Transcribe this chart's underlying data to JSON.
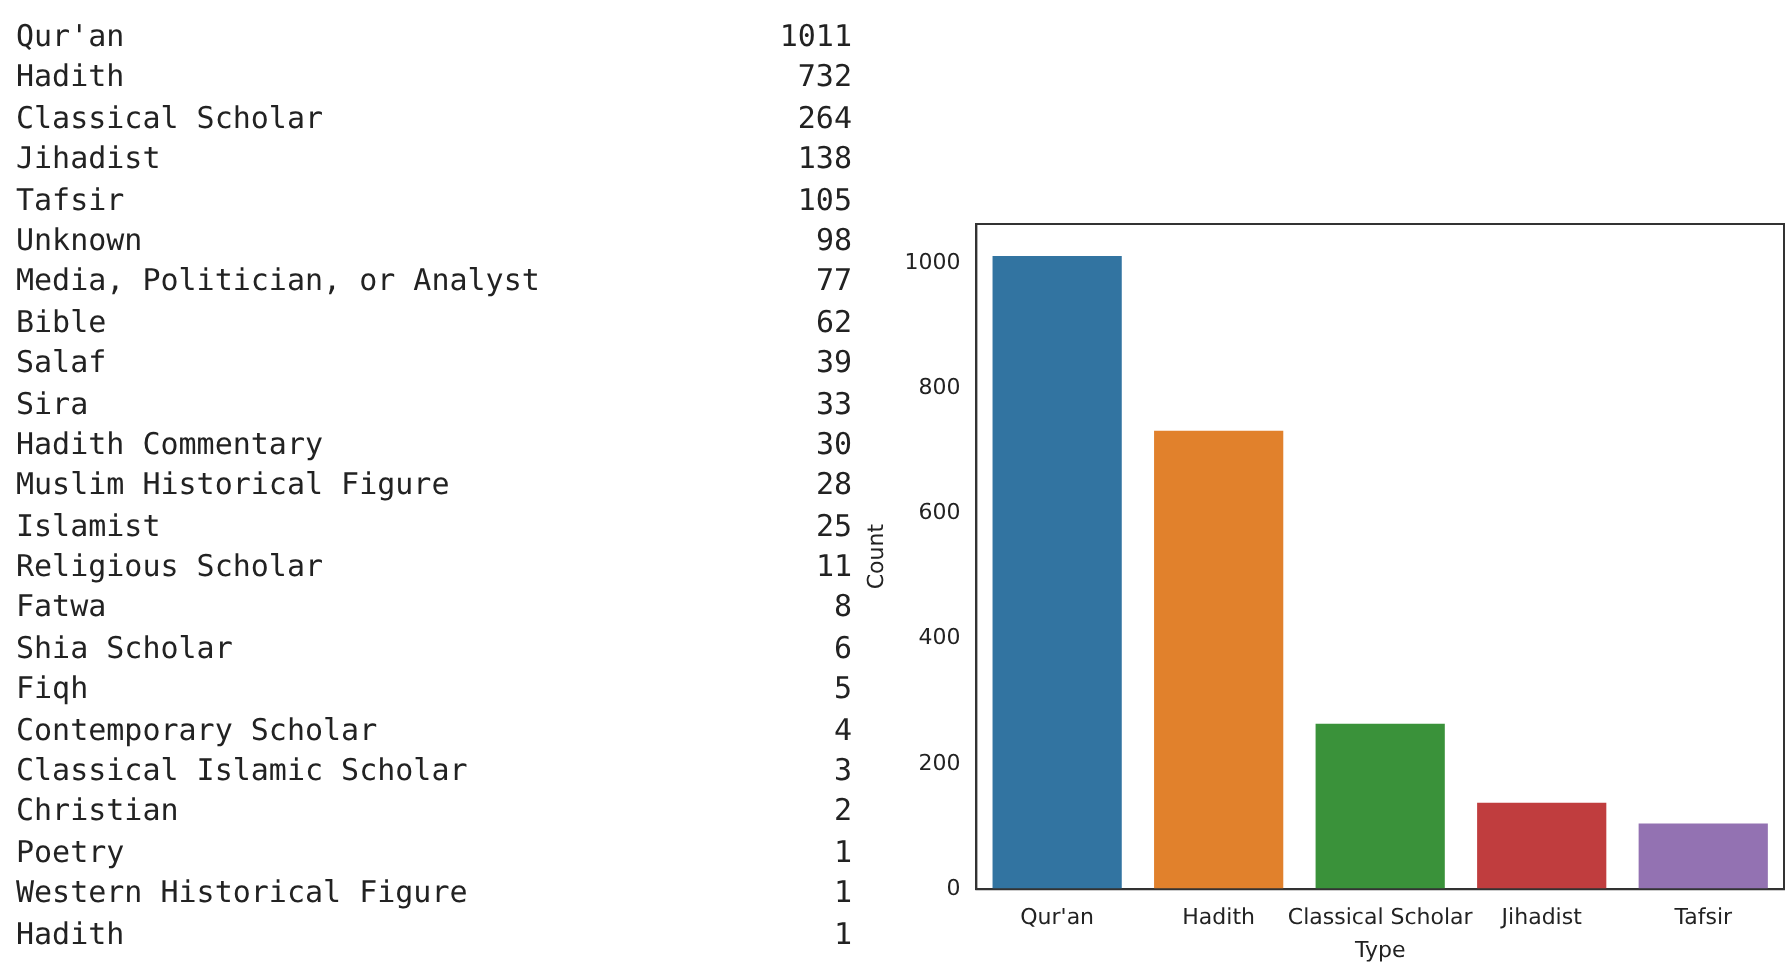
{
  "chart_data": [
    {
      "type": "other",
      "data_labels": true,
      "categories": [
        "Qur'an",
        "Hadith",
        "Classical Scholar",
        "Jihadist",
        "Tafsir",
        "Unknown",
        "Media, Politician, or Analyst",
        "Bible",
        "Salaf",
        "Sira",
        "Hadith Commentary",
        "Muslim Historical Figure",
        "Islamist",
        "Religious Scholar",
        "Fatwa",
        "Shia Scholar",
        "Fiqh",
        "Contemporary Scholar",
        "Classical Islamic Scholar",
        "Christian",
        "Poetry",
        "Western Historical Figure",
        "Hadith"
      ],
      "values": [
        1011,
        732,
        264,
        138,
        105,
        98,
        77,
        62,
        39,
        33,
        30,
        28,
        25,
        11,
        8,
        6,
        5,
        4,
        3,
        2,
        1,
        1,
        1
      ]
    },
    {
      "type": "bar",
      "xlabel": "Type",
      "ylabel": "Count",
      "categories": [
        "Qur'an",
        "Hadith",
        "Classical Scholar",
        "Jihadist",
        "Tafsir"
      ],
      "values": [
        1011,
        732,
        264,
        138,
        105
      ],
      "colors": [
        "#3274a1",
        "#e1812c",
        "#3a923a",
        "#c03d3e",
        "#9372b2"
      ],
      "ylim": [
        0,
        1062
      ],
      "yticks": [
        0,
        200,
        400,
        600,
        800,
        1000
      ]
    }
  ]
}
